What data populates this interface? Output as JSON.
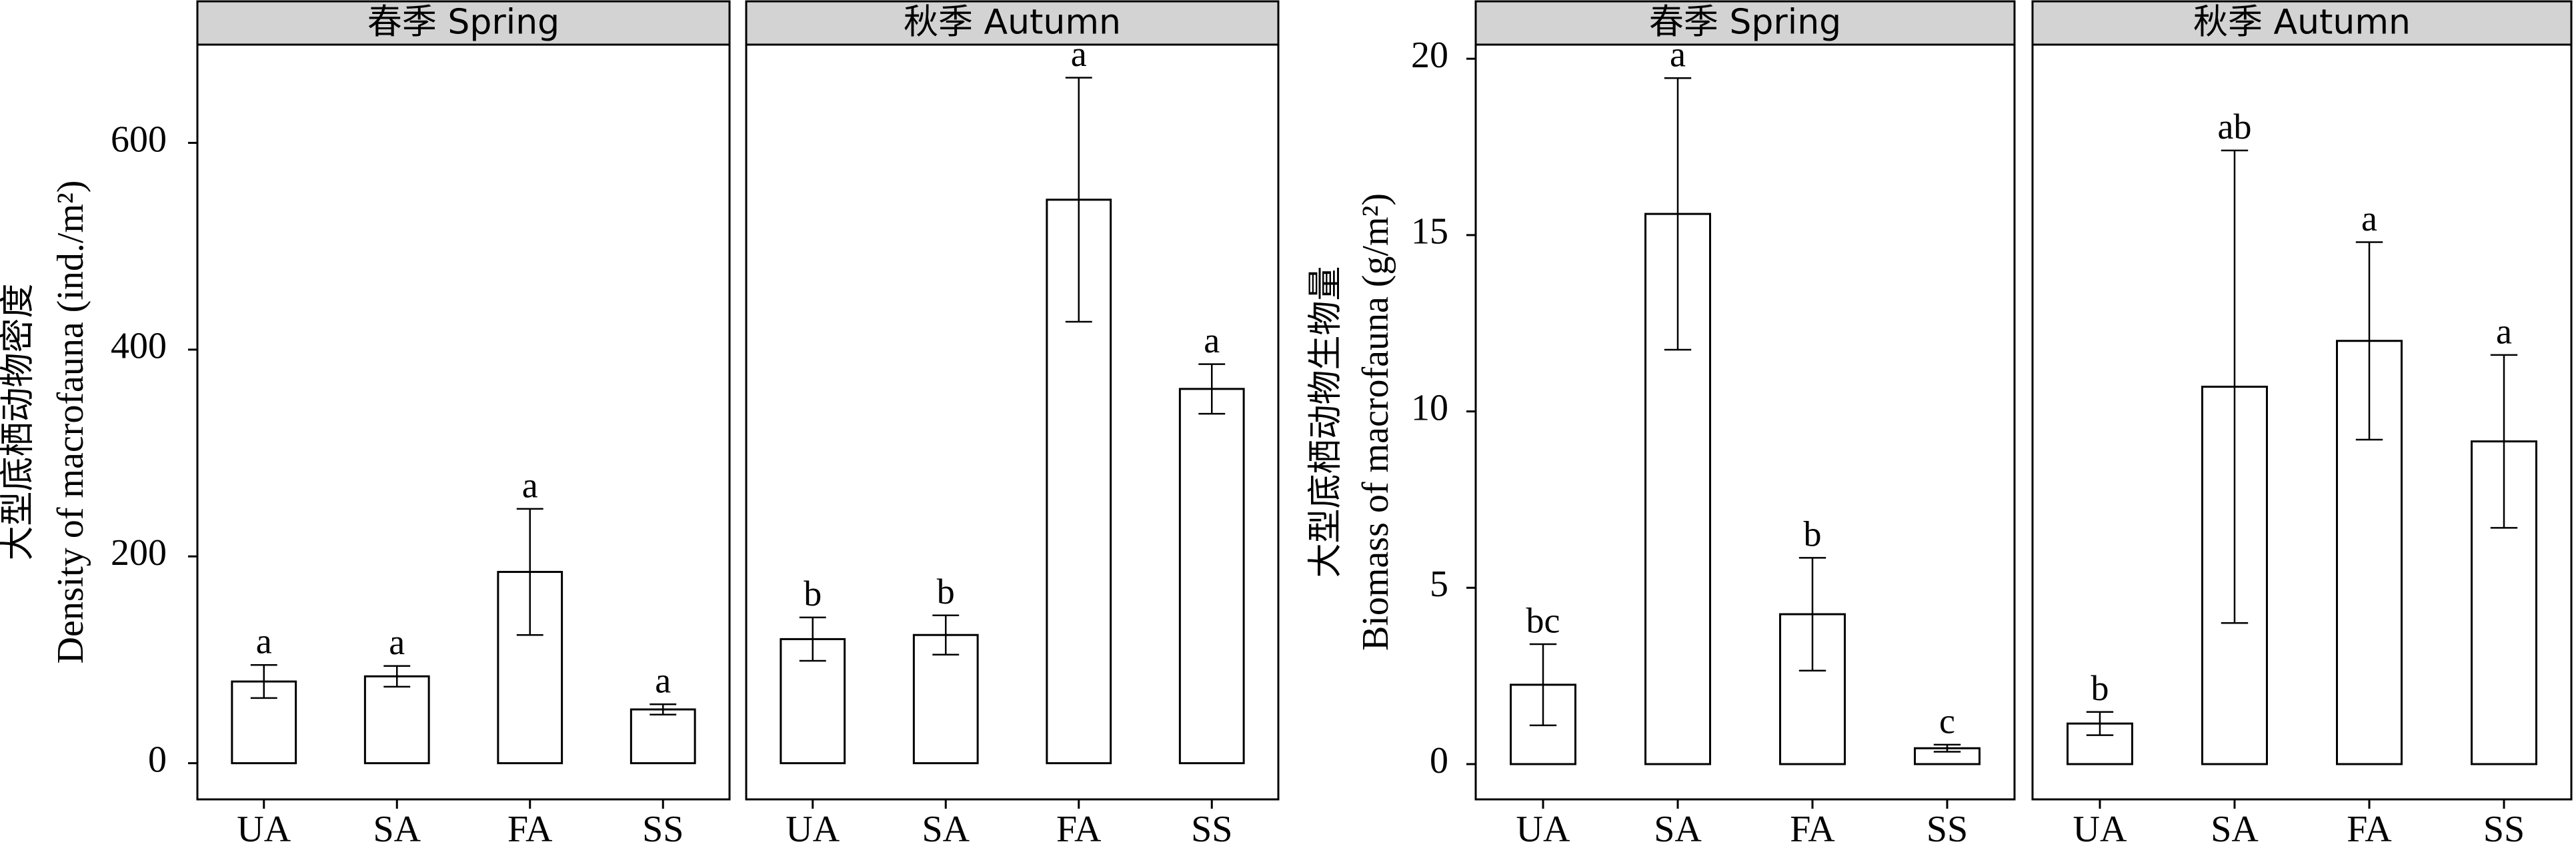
{
  "chart_data": [
    {
      "type": "bar",
      "ylabel": [
        "大型底栖动物密度",
        "Density of macrofauna (ind./m²)"
      ],
      "ylim": [
        -35,
        695
      ],
      "yticks": [
        0,
        200,
        400,
        600
      ],
      "panels": [
        {
          "title": "春季 Spring",
          "categories": [
            "UA",
            "SA",
            "FA",
            "SS"
          ],
          "values": [
            79,
            84,
            185,
            52
          ],
          "errors": [
            16,
            10,
            61,
            5
          ],
          "letters": [
            "a",
            "a",
            "a",
            "a"
          ]
        },
        {
          "title": "秋季 Autumn",
          "categories": [
            "UA",
            "SA",
            "FA",
            "SS"
          ],
          "values": [
            120,
            124,
            545,
            362
          ],
          "errors": [
            21,
            19,
            118,
            24
          ],
          "letters": [
            "b",
            "b",
            "a",
            "a"
          ]
        }
      ]
    },
    {
      "type": "bar",
      "ylabel": [
        "大型底栖动物生物量",
        "Biomass of macrofauna (g/m²)"
      ],
      "ylim": [
        -1,
        20.4
      ],
      "yticks": [
        0,
        5,
        10,
        15,
        20
      ],
      "panels": [
        {
          "title": "春季 Spring",
          "categories": [
            "UA",
            "SA",
            "FA",
            "SS"
          ],
          "values": [
            2.25,
            15.6,
            4.25,
            0.45
          ],
          "errors": [
            1.15,
            3.85,
            1.6,
            0.1
          ],
          "letters": [
            "bc",
            "a",
            "b",
            "c"
          ]
        },
        {
          "title": "秋季 Autumn",
          "categories": [
            "UA",
            "SA",
            "FA",
            "SS"
          ],
          "values": [
            1.15,
            10.7,
            12,
            9.15
          ],
          "errors": [
            0.33,
            6.7,
            2.8,
            2.45
          ],
          "letters": [
            "b",
            "ab",
            "a",
            "a"
          ]
        }
      ]
    }
  ]
}
